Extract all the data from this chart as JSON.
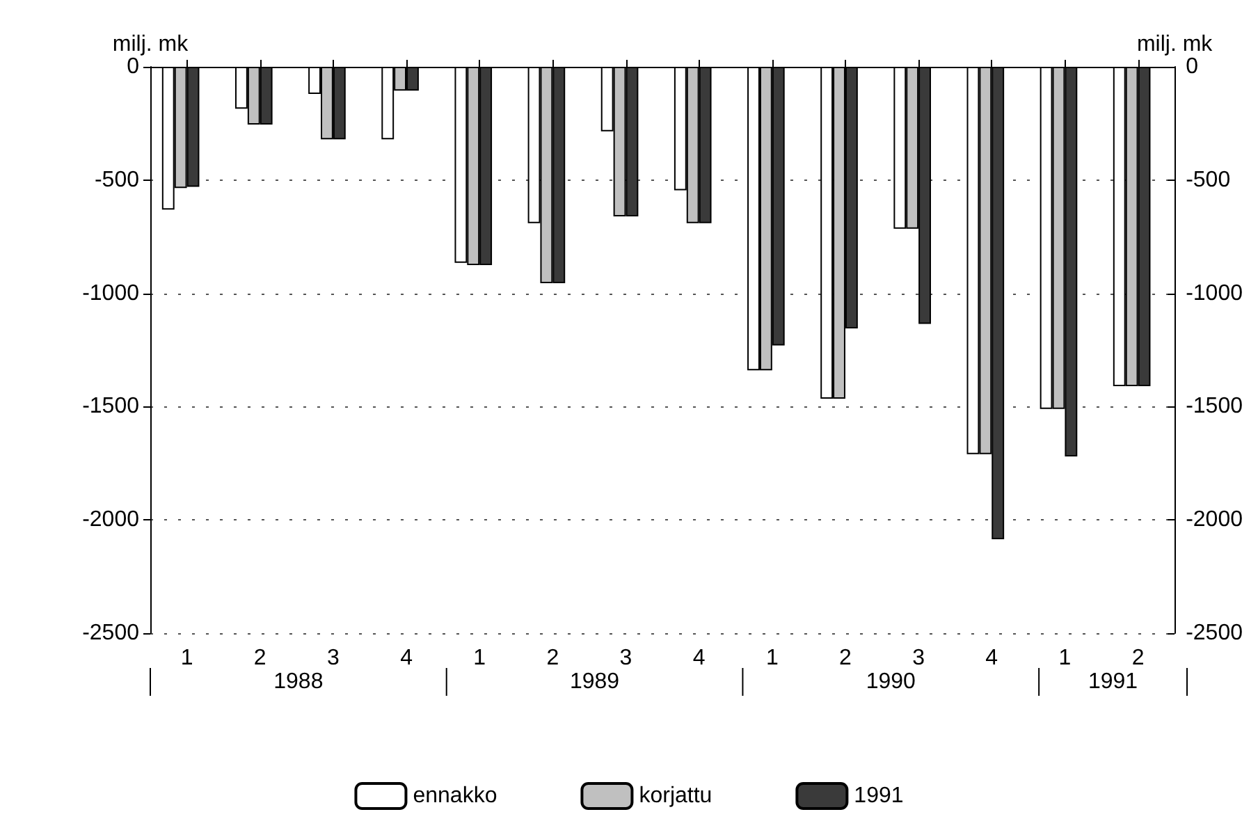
{
  "chart_data": {
    "type": "bar",
    "ylabel": "milj. mk",
    "y2label": "milj. mk",
    "categories": [
      "1",
      "2",
      "3",
      "4",
      "1",
      "2",
      "3",
      "4",
      "1",
      "2",
      "3",
      "4",
      "1",
      "2"
    ],
    "series": [
      {
        "name": "ennakko",
        "color": "#ffffff",
        "values": [
          -630,
          -185,
          -120,
          -320,
          -865,
          -690,
          -285,
          -545,
          -1340,
          -1465,
          -715,
          -1710,
          -1510,
          -1410
        ]
      },
      {
        "name": "korjattu",
        "color": "#c0c0c0",
        "values": [
          -535,
          -255,
          -320,
          -105,
          -875,
          -955,
          -660,
          -690,
          -1340,
          -1465,
          -715,
          -1710,
          -1510,
          -1410
        ]
      },
      {
        "name": "1991",
        "color": "#3a3a3a",
        "values": [
          -530,
          -255,
          -320,
          -105,
          -875,
          -955,
          -660,
          -690,
          -1230,
          -1155,
          -1135,
          -2085,
          -1720,
          -1410
        ]
      }
    ],
    "annotations": [
      "1988",
      "1989",
      "1990",
      "1991"
    ],
    "ylim": [
      -2500,
      0
    ],
    "yticks": [
      -2500,
      -2000,
      -1500,
      -1000,
      -500,
      0
    ],
    "y2lim": [
      -2500,
      0
    ],
    "y2ticks": [
      -2500,
      -2000,
      -1500,
      -1000,
      -500,
      0
    ],
    "grid": "y",
    "legend": "bottom"
  }
}
